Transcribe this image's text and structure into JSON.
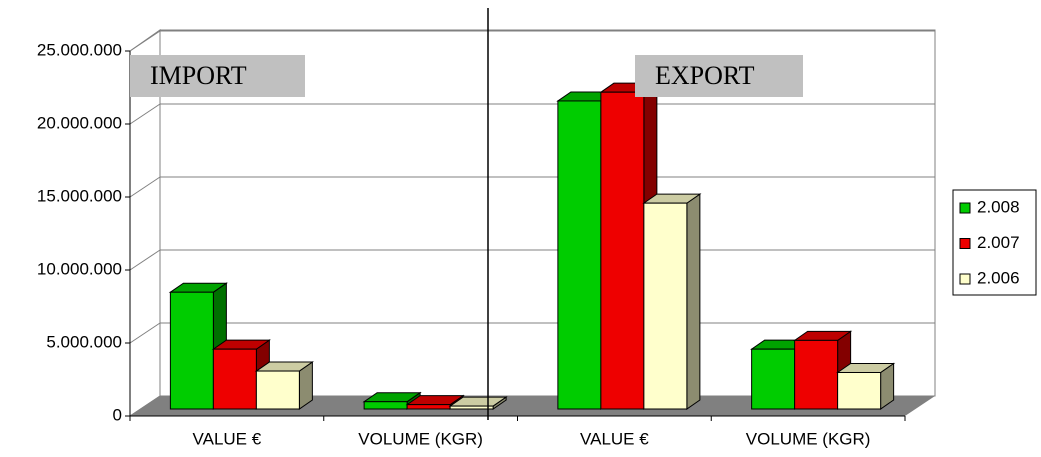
{
  "chart_data": {
    "type": "bar3d",
    "categories": [
      "VALUE €",
      "VOLUME (KGR)",
      "VALUE €",
      "VOLUME (KGR)"
    ],
    "series": [
      {
        "name": "2.008",
        "color": "#00cc00",
        "values": [
          8000000,
          500000,
          21100000,
          4100000
        ]
      },
      {
        "name": "2.007",
        "color": "#ee0000",
        "values": [
          4100000,
          300000,
          21700000,
          4700000
        ]
      },
      {
        "name": "2.006",
        "color": "#ffffcc",
        "values": [
          2600000,
          200000,
          14100000,
          2500000
        ]
      }
    ],
    "annotations": [
      "IMPORT",
      "EXPORT"
    ],
    "ylim": [
      0,
      25000000
    ],
    "yticks": [
      0,
      {
        "value": 5000000,
        "label": "5.000.000"
      },
      {
        "value": 10000000,
        "label": "10.000.000"
      },
      {
        "value": 15000000,
        "label": "15.000.000"
      },
      {
        "value": 20000000,
        "label": "20.000.000"
      },
      {
        "value": 25000000,
        "label": "25.000.000"
      }
    ],
    "grid": true,
    "legend": "right"
  }
}
